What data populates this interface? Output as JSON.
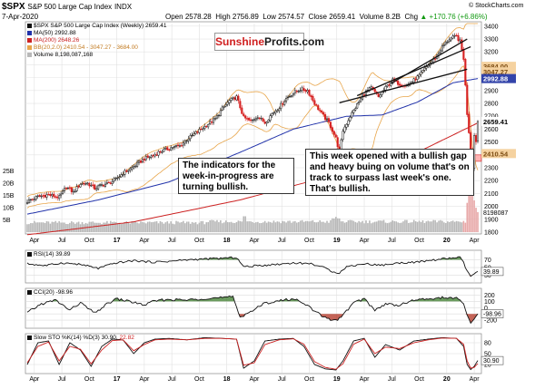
{
  "header": {
    "symbol": "$SPX",
    "name": "S&P 500 Large Cap Index",
    "exchange": "INDX",
    "date": "7-Apr-2020",
    "open_label": "Open",
    "open": "2578.28",
    "high_label": "High",
    "high": "2756.89",
    "low_label": "Low",
    "low": "2574.57",
    "close_label": "Close",
    "close": "2659.41",
    "volume_label": "Volume",
    "volume": "8.2B",
    "chg_label": "Chg",
    "chg": "+170.76 (+6.86%)",
    "chg_arrow": "▲",
    "watermark": "© StockCharts.com"
  },
  "logo": {
    "part1": "Sunshine",
    "part2": "Profits.com"
  },
  "legend": {
    "main": "$SPX S&P 500 Large Cap Index (Weekly) 2659.41",
    "ma50": "MA(50) 2992.88",
    "ma200": "MA(200) 2648.26",
    "bb": "BB(20,2.0) 2410.54 - 3047.27 - 3684.00",
    "volume": "Volume 8,198,087,168",
    "rsi": "RSI(14) 39.89",
    "cci": "CCI(20) -98.96",
    "sto_prefix": "Slow STO %K(14) %D(3) 30.90,",
    "sto_d": "22.82"
  },
  "annotations": {
    "left": "The indicators for the week-in-progress are turning bullish.",
    "right": "This week opened with a bullish gap and heavy buing on volume that's on track to surpass last week's one. That's bullish."
  },
  "colors": {
    "up": "#111111",
    "down": "#d62020",
    "ma50": "#2233aa",
    "ma200": "#cc2222",
    "bb": "#e8a54a",
    "volume": "#b8b8b8",
    "support_zone": "#ff9a9a",
    "indicator_fill": "#3a7a2a",
    "indicator_fill_low": "#b03020"
  },
  "chart_data": [
    {
      "type": "candlestick",
      "title": "$SPX S&P 500 Large Cap Index INDX",
      "timeframe": "Weekly",
      "x_tick_labels": [
        "Apr",
        "Jul",
        "Oct",
        "17",
        "Apr",
        "Jul",
        "Oct",
        "18",
        "Apr",
        "Jul",
        "Oct",
        "19",
        "Apr",
        "Jul",
        "Oct",
        "20",
        "Apr"
      ],
      "y_ticks": [
        1800,
        1900,
        2000,
        2100,
        2200,
        2300,
        2400,
        2500,
        2600,
        2700,
        2800,
        2900,
        3000,
        3100,
        3200,
        3300,
        3400
      ],
      "ylim": [
        1800,
        3420
      ],
      "price_labels": {
        "bb_upper": "3684.00",
        "bb_mid": "3047.27",
        "ma50": "2992.88",
        "last": "2659.41",
        "bb_lower": "2410.54"
      },
      "last_close": 2659.41,
      "ma50_last": 2992.88,
      "ma200_last": 2648.26,
      "bb": {
        "lower": 2410.54,
        "mid": 3047.27,
        "upper": 3684.0
      },
      "support_zone": [
        2350,
        2400
      ],
      "volume_ticks": [
        "25B",
        "20B",
        "15B",
        "10B",
        "5B"
      ],
      "volume_last_label": "8198087",
      "anchor_closes": [
        [
          0,
          2040
        ],
        [
          6,
          2075
        ],
        [
          12,
          2090
        ],
        [
          18,
          2070
        ],
        [
          22,
          2150
        ],
        [
          26,
          2110
        ],
        [
          30,
          2175
        ],
        [
          34,
          2180
        ],
        [
          38,
          2140
        ],
        [
          42,
          2165
        ],
        [
          46,
          2180
        ],
        [
          50,
          2210
        ],
        [
          54,
          2260
        ],
        [
          58,
          2290
        ],
        [
          62,
          2330
        ],
        [
          66,
          2370
        ],
        [
          70,
          2390
        ],
        [
          74,
          2420
        ],
        [
          78,
          2440
        ],
        [
          82,
          2460
        ],
        [
          86,
          2470
        ],
        [
          90,
          2520
        ],
        [
          94,
          2560
        ],
        [
          98,
          2600
        ],
        [
          102,
          2640
        ],
        [
          106,
          2680
        ],
        [
          110,
          2760
        ],
        [
          114,
          2820
        ],
        [
          118,
          2850
        ],
        [
          122,
          2690
        ],
        [
          126,
          2660
        ],
        [
          130,
          2700
        ],
        [
          134,
          2650
        ],
        [
          138,
          2720
        ],
        [
          142,
          2770
        ],
        [
          146,
          2840
        ],
        [
          150,
          2880
        ],
        [
          154,
          2910
        ],
        [
          158,
          2900
        ],
        [
          162,
          2800
        ],
        [
          166,
          2720
        ],
        [
          170,
          2650
        ],
        [
          174,
          2530
        ],
        [
          176,
          2420
        ],
        [
          178,
          2590
        ],
        [
          182,
          2700
        ],
        [
          186,
          2790
        ],
        [
          190,
          2880
        ],
        [
          194,
          2920
        ],
        [
          198,
          2850
        ],
        [
          202,
          2920
        ],
        [
          206,
          2980
        ],
        [
          210,
          2950
        ],
        [
          214,
          2940
        ],
        [
          218,
          2980
        ],
        [
          222,
          3030
        ],
        [
          226,
          3100
        ],
        [
          230,
          3150
        ],
        [
          234,
          3240
        ],
        [
          238,
          3300
        ],
        [
          242,
          3320
        ],
        [
          244,
          3280
        ],
        [
          246,
          3150
        ],
        [
          248,
          2720
        ],
        [
          249,
          2580
        ],
        [
          250,
          2450
        ],
        [
          251,
          2310
        ],
        [
          252,
          2550
        ],
        [
          253,
          2510
        ],
        [
          254,
          2660
        ]
      ],
      "series": [
        {
          "name": "MA(50)",
          "anchors": [
            [
              0,
              1940
            ],
            [
              40,
              2050
            ],
            [
              80,
              2190
            ],
            [
              120,
              2420
            ],
            [
              150,
              2600
            ],
            [
              180,
              2700
            ],
            [
              200,
              2710
            ],
            [
              220,
              2810
            ],
            [
              240,
              2960
            ],
            [
              254,
              2992.88
            ]
          ]
        },
        {
          "name": "MA(200)",
          "anchors": [
            [
              0,
              1780
            ],
            [
              60,
              1880
            ],
            [
              120,
              2050
            ],
            [
              180,
              2270
            ],
            [
              220,
              2420
            ],
            [
              254,
              2648.26
            ]
          ]
        }
      ],
      "trendlines": [
        {
          "from": [
            205,
            2955
          ],
          "to": [
            248,
            3300
          ]
        },
        {
          "from": [
            176,
            2805
          ],
          "to": [
            248,
            3065
          ]
        },
        {
          "from": [
            186,
            2860
          ],
          "to": [
            250,
            3240
          ]
        }
      ]
    },
    {
      "type": "line",
      "title": "RSI(14)",
      "last": 39.89,
      "y_ticks": [
        70,
        50,
        30
      ],
      "anchors": [
        [
          0,
          60
        ],
        [
          10,
          55
        ],
        [
          20,
          62
        ],
        [
          30,
          58
        ],
        [
          40,
          48
        ],
        [
          50,
          62
        ],
        [
          60,
          68
        ],
        [
          70,
          64
        ],
        [
          80,
          66
        ],
        [
          90,
          70
        ],
        [
          100,
          72
        ],
        [
          110,
          74
        ],
        [
          118,
          76
        ],
        [
          122,
          52
        ],
        [
          130,
          55
        ],
        [
          140,
          58
        ],
        [
          150,
          62
        ],
        [
          160,
          60
        ],
        [
          166,
          52
        ],
        [
          172,
          40
        ],
        [
          176,
          36
        ],
        [
          180,
          52
        ],
        [
          190,
          60
        ],
        [
          200,
          56
        ],
        [
          210,
          62
        ],
        [
          220,
          64
        ],
        [
          230,
          70
        ],
        [
          240,
          75
        ],
        [
          244,
          76
        ],
        [
          246,
          62
        ],
        [
          248,
          40
        ],
        [
          250,
          28
        ],
        [
          252,
          34
        ],
        [
          254,
          39.89
        ]
      ]
    },
    {
      "type": "line",
      "title": "CCI(20)",
      "last": -98.96,
      "y_ticks": [
        200,
        100,
        0,
        -100,
        -200
      ],
      "anchors": [
        [
          0,
          -80
        ],
        [
          8,
          60
        ],
        [
          16,
          120
        ],
        [
          24,
          -40
        ],
        [
          30,
          80
        ],
        [
          38,
          -90
        ],
        [
          44,
          40
        ],
        [
          50,
          140
        ],
        [
          58,
          100
        ],
        [
          66,
          40
        ],
        [
          72,
          110
        ],
        [
          80,
          130
        ],
        [
          90,
          120
        ],
        [
          100,
          150
        ],
        [
          110,
          160
        ],
        [
          116,
          170
        ],
        [
          120,
          -150
        ],
        [
          126,
          -60
        ],
        [
          134,
          70
        ],
        [
          142,
          110
        ],
        [
          150,
          140
        ],
        [
          156,
          80
        ],
        [
          162,
          -60
        ],
        [
          168,
          -160
        ],
        [
          174,
          -210
        ],
        [
          178,
          -120
        ],
        [
          184,
          80
        ],
        [
          190,
          140
        ],
        [
          196,
          -40
        ],
        [
          202,
          60
        ],
        [
          210,
          40
        ],
        [
          218,
          120
        ],
        [
          226,
          140
        ],
        [
          234,
          160
        ],
        [
          242,
          150
        ],
        [
          246,
          60
        ],
        [
          248,
          -120
        ],
        [
          250,
          -240
        ],
        [
          252,
          -180
        ],
        [
          254,
          -98.96
        ]
      ]
    },
    {
      "type": "line",
      "title": "Slow STO %K(14) %D(3)",
      "last_k": 30.9,
      "last_d": 22.82,
      "y_ticks": [
        80,
        50,
        20
      ],
      "anchors_k": [
        [
          0,
          20
        ],
        [
          6,
          80
        ],
        [
          12,
          85
        ],
        [
          18,
          20
        ],
        [
          24,
          80
        ],
        [
          30,
          60
        ],
        [
          36,
          15
        ],
        [
          42,
          70
        ],
        [
          48,
          90
        ],
        [
          54,
          88
        ],
        [
          60,
          50
        ],
        [
          66,
          80
        ],
        [
          72,
          90
        ],
        [
          80,
          92
        ],
        [
          90,
          88
        ],
        [
          100,
          94
        ],
        [
          110,
          92
        ],
        [
          118,
          90
        ],
        [
          122,
          10
        ],
        [
          128,
          30
        ],
        [
          134,
          85
        ],
        [
          142,
          90
        ],
        [
          150,
          92
        ],
        [
          156,
          70
        ],
        [
          162,
          20
        ],
        [
          168,
          8
        ],
        [
          174,
          5
        ],
        [
          178,
          30
        ],
        [
          184,
          85
        ],
        [
          190,
          92
        ],
        [
          196,
          40
        ],
        [
          202,
          75
        ],
        [
          210,
          60
        ],
        [
          218,
          85
        ],
        [
          226,
          90
        ],
        [
          234,
          94
        ],
        [
          242,
          92
        ],
        [
          246,
          70
        ],
        [
          248,
          20
        ],
        [
          250,
          6
        ],
        [
          252,
          15
        ],
        [
          254,
          30.9
        ]
      ],
      "anchors_d": [
        [
          0,
          25
        ],
        [
          6,
          70
        ],
        [
          12,
          82
        ],
        [
          18,
          30
        ],
        [
          24,
          70
        ],
        [
          30,
          62
        ],
        [
          36,
          22
        ],
        [
          42,
          60
        ],
        [
          48,
          86
        ],
        [
          54,
          88
        ],
        [
          60,
          58
        ],
        [
          66,
          75
        ],
        [
          72,
          88
        ],
        [
          80,
          90
        ],
        [
          90,
          88
        ],
        [
          100,
          92
        ],
        [
          110,
          92
        ],
        [
          118,
          90
        ],
        [
          122,
          18
        ],
        [
          128,
          25
        ],
        [
          134,
          75
        ],
        [
          142,
          88
        ],
        [
          150,
          91
        ],
        [
          156,
          76
        ],
        [
          162,
          28
        ],
        [
          168,
          12
        ],
        [
          174,
          7
        ],
        [
          178,
          22
        ],
        [
          184,
          76
        ],
        [
          190,
          90
        ],
        [
          196,
          50
        ],
        [
          202,
          68
        ],
        [
          210,
          64
        ],
        [
          218,
          80
        ],
        [
          226,
          88
        ],
        [
          234,
          93
        ],
        [
          242,
          92
        ],
        [
          246,
          76
        ],
        [
          248,
          30
        ],
        [
          250,
          10
        ],
        [
          252,
          12
        ],
        [
          254,
          22.82
        ]
      ]
    }
  ]
}
